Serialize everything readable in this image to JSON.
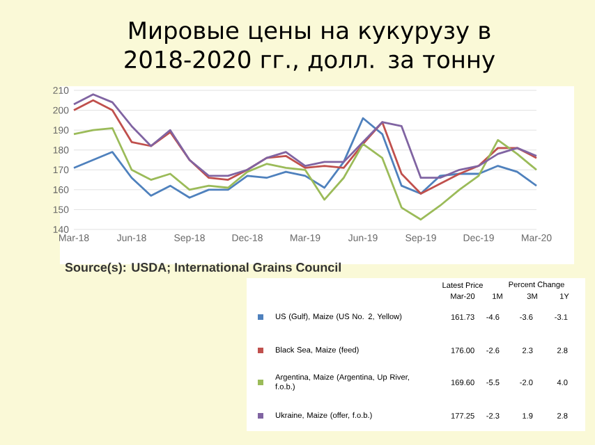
{
  "chart_data": {
    "type": "line",
    "title": "Мировые цены на кукурузу в 2018-2020 гг., долл. за тонну",
    "x": [
      "2018-03",
      "2018-04",
      "2018-05",
      "2018-06",
      "2018-07",
      "2018-08",
      "2018-09",
      "2018-10",
      "2018-11",
      "2018-12",
      "2019-01",
      "2019-02",
      "2019-03",
      "2019-04",
      "2019-05",
      "2019-06",
      "2019-07",
      "2019-08",
      "2019-09",
      "2019-10",
      "2019-11",
      "2019-12",
      "2020-01",
      "2020-02",
      "2020-03"
    ],
    "series": [
      {
        "name": "US (Gulf), Maize (US No. 2, Yellow)",
        "color": "#4f81bd",
        "values": [
          171,
          175,
          179,
          166,
          157,
          162,
          156,
          160,
          160,
          167,
          166,
          169,
          167,
          161,
          174,
          196,
          188,
          162,
          158,
          167,
          168,
          168,
          172,
          169,
          162
        ]
      },
      {
        "name": "Black Sea, Maize (feed)",
        "color": "#c0504d",
        "values": [
          200,
          205,
          200,
          184,
          182,
          189,
          175,
          166,
          165,
          170,
          176,
          177,
          171,
          172,
          171,
          183,
          194,
          168,
          158,
          163,
          168,
          172,
          181,
          181,
          176
        ]
      },
      {
        "name": "Argentina, Maize (Argentina, Up River, f.o.b.)",
        "color": "#9bbb59",
        "values": [
          188,
          190,
          191,
          170,
          165,
          168,
          160,
          162,
          161,
          169,
          173,
          171,
          170,
          155,
          166,
          183,
          176,
          151,
          145,
          152,
          160,
          167,
          185,
          178,
          170
        ]
      },
      {
        "name": "Ukraine, Maize (offer, f.o.b.)",
        "color": "#8064a2",
        "values": [
          203,
          208,
          204,
          192,
          182,
          190,
          175,
          167,
          167,
          170,
          176,
          179,
          172,
          174,
          174,
          184,
          194,
          192,
          166,
          166,
          170,
          172,
          178,
          181,
          177
        ]
      }
    ],
    "xlim": [
      "2018-03",
      "2020-03"
    ],
    "xticks": [
      {
        "value": "2018-03",
        "label": "Mar-18"
      },
      {
        "value": "2018-06",
        "label": "Jun-18"
      },
      {
        "value": "2018-09",
        "label": "Sep-18"
      },
      {
        "value": "2018-12",
        "label": "Dec-18"
      },
      {
        "value": "2019-03",
        "label": "Mar-19"
      },
      {
        "value": "2019-06",
        "label": "Jun-19"
      },
      {
        "value": "2019-09",
        "label": "Sep-19"
      },
      {
        "value": "2019-12",
        "label": "Dec-19"
      },
      {
        "value": "2020-03",
        "label": "Mar-20"
      }
    ],
    "ylim": [
      140,
      210
    ],
    "yticks": [
      140,
      150,
      160,
      170,
      180,
      190,
      200,
      210
    ],
    "grid": "y",
    "legend": "bottom",
    "annotations": [
      "Source(s): USDA; International Grains Council",
      "Latest Price",
      "Percent Change",
      "Mar-20",
      "1M",
      "3M",
      "1Y",
      "161.73",
      "-4.6",
      "-3.6",
      "-3.1",
      "176.00",
      "-2.6",
      "2.3",
      "2.8",
      "169.60",
      "-5.5",
      "-2.0",
      "4.0",
      "177.25",
      "-2.3",
      "1.9",
      "2.8"
    ]
  }
}
